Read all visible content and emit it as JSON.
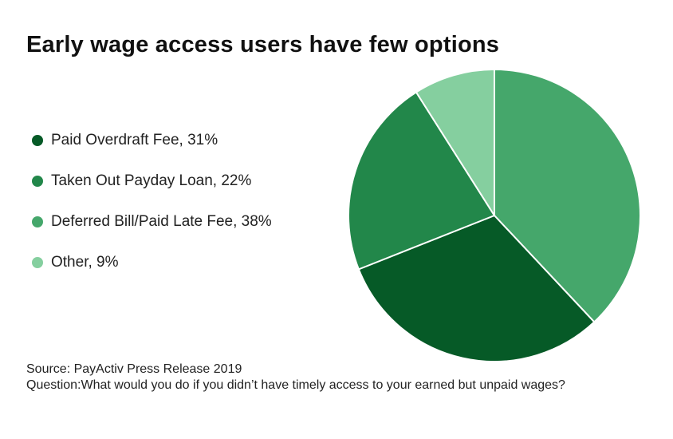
{
  "chart_data": {
    "type": "pie",
    "title": "Early wage access users have few options",
    "slices": [
      {
        "label": "Deferred Bill/Paid Late Fee",
        "value": 38,
        "legend": "Deferred Bill/Paid Late Fee, 38%",
        "color": "#45a76b"
      },
      {
        "label": "Paid Overdraft Fee",
        "value": 31,
        "legend": "Paid Overdraft Fee, 31%",
        "color": "#065a27"
      },
      {
        "label": "Taken Out Payday Loan",
        "value": 22,
        "legend": "Taken Out Payday Loan, 22%",
        "color": "#22874a"
      },
      {
        "label": "Other",
        "value": 9,
        "legend": "Other, 9%",
        "color": "#85cf9f"
      }
    ],
    "legend_order": [
      "Paid Overdraft Fee",
      "Taken Out Payday Loan",
      "Deferred Bill/Paid Late Fee",
      "Other"
    ],
    "start_angle_deg": 0,
    "direction": "clockwise",
    "legend_position": "left"
  },
  "footer": {
    "source": "Source: PayActiv Press Release 2019",
    "question": "Question:What would you do if you didn’t have timely access to your earned but unpaid wages?"
  }
}
